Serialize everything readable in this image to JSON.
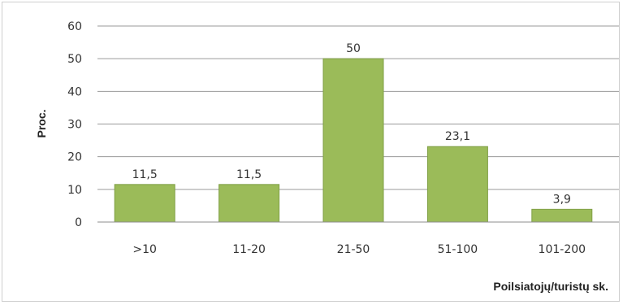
{
  "chart_data": {
    "type": "bar",
    "categories": [
      ">10",
      "11-20",
      "21-50",
      "51-100",
      "101-200"
    ],
    "values": [
      11.5,
      11.5,
      50,
      23.1,
      3.9
    ],
    "data_labels": [
      "11,5",
      "11,5",
      "50",
      "23,1",
      "3,9"
    ],
    "ylabel": "Proc.",
    "xlabel": "Poilsiatojų/turistų sk.",
    "ylim": [
      0,
      60
    ],
    "yticks": [
      0,
      10,
      20,
      30,
      40,
      50,
      60
    ],
    "grid": true,
    "bar_color": "#9bbb59",
    "bar_edge_color": "#7f9f45"
  }
}
